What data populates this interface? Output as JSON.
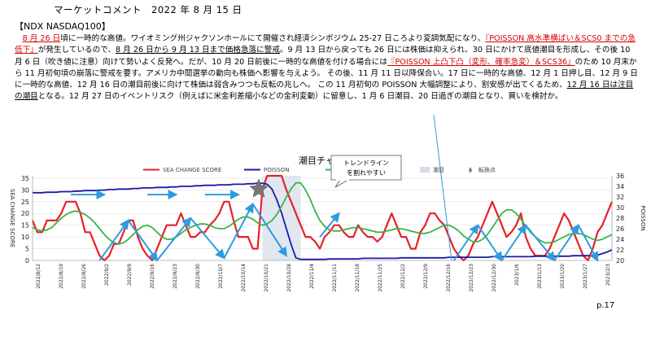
{
  "header": {
    "title": "マーケットコメント　2022 年 8 月 15 日",
    "ticker": "【NDX  NASDAQ100】"
  },
  "comment": {
    "segments": [
      {
        "text": "　",
        "red": false,
        "ul": false
      },
      {
        "text": "8 月 26 日",
        "red": true,
        "ul": true
      },
      {
        "text": "頃に一時的な高値。ワイオミング州ジャクソンホールにて開催され経済シンポジウム 25-27 日ころより変調気配になり、",
        "red": false,
        "ul": false
      },
      {
        "text": "『POISSON 高水準横ばい＆SCS0 までの急低下』",
        "red": true,
        "ul": true
      },
      {
        "text": "が発生しているので、",
        "red": false,
        "ul": false
      },
      {
        "text": "8 月 26 日から 9 月 13 日まで価格急落に警戒",
        "red": false,
        "ul": true
      },
      {
        "text": "。9 月 13 日から戻っても 26 日には株価は抑えられ、30 日にかけて底値潮目を形成し、その後 10 月 6 日（吹き値に注意）向けて勢いよく反発へ。だが、10 月 20 日前後に一時的な高値を付ける場合には",
        "red": false,
        "ul": false
      },
      {
        "text": "『POISSON 上凸下凸（変形、確率急変）＆SCS36』",
        "red": true,
        "ul": true
      },
      {
        "text": "のため 10 月末から 11 月初旬頃の崩落に警戒を要す。アメリカ中間選挙の動向も株価へ影響を与えよう。 その後、11 月 11 日以降保合い。17 日に一時的な高値、12 月 1 日押し目、12 月 9 日に一時的な高値、12 月 16 日の潮目前後に向けて株価は弱含みつつも反転の兆しへ。 この 11 月初旬の POISSON 大幅調整により、割安感が出てくるため、",
        "red": false,
        "ul": false
      },
      {
        "text": "12 月 16 日は注目の潮目",
        "red": false,
        "ul": true
      },
      {
        "text": "となる。12 月 27 日のイベントリスク（例えばに米金利差縮小などの金利変動）に留意し、1 月 6 日潮目、20 日過ぎの潮目となり、買いを検討か。",
        "red": false,
        "ul": false
      }
    ]
  },
  "chart_data": {
    "type": "line",
    "title": "潮目チャート",
    "ylabel_left": "SEA CHANGE SCORE",
    "ylabel_right": "POISSON",
    "ylim_left": [
      0,
      36
    ],
    "ylim_right": [
      20,
      36
    ],
    "yticks_left": [
      0,
      5,
      10,
      15,
      20,
      25,
      30,
      35
    ],
    "yticks_right": [
      20,
      22,
      24,
      26,
      28,
      30,
      32,
      34,
      36
    ],
    "x_tick_labels": [
      "2022/8/12",
      "2022/8/19",
      "2022/8/26",
      "2022/9/2",
      "2022/9/9",
      "2022/9/16",
      "2022/9/23",
      "2022/9/30",
      "2022/10/7",
      "2022/10/14",
      "2022/10/21",
      "2022/10/28",
      "2022/11/4",
      "2022/11/11",
      "2022/11/18",
      "2022/11/25",
      "2022/12/2",
      "2022/12/9",
      "2022/12/16",
      "2022/12/23",
      "2022/12/30",
      "2023/1/6",
      "2023/1/13",
      "2023/1/20",
      "2023/1/27",
      "2023/2/3"
    ],
    "legend": [
      {
        "name": "SEA CHANGE SCORE",
        "color": "#e8202a"
      },
      {
        "name": "POISSON",
        "color": "#1a1aa8"
      },
      {
        "name": "FTR 推定補正値",
        "color": "#3cb34a"
      },
      {
        "name": "潮目",
        "color": "#d4dde8"
      },
      {
        "name": "転換点",
        "color": "#777777"
      }
    ],
    "annotation": {
      "line1": "トレンドライン",
      "line2": "を割れやすい"
    },
    "series": [
      {
        "name": "SEA CHANGE SCORE",
        "color": "#e8202a",
        "values": [
          17,
          12,
          12,
          17,
          17,
          17,
          20,
          25,
          25,
          25,
          20,
          12,
          12,
          7,
          2,
          0,
          2,
          7,
          7,
          12,
          17,
          17,
          10,
          5,
          2,
          0,
          5,
          10,
          15,
          15,
          15,
          20,
          15,
          10,
          10,
          12,
          12,
          15,
          17,
          20,
          25,
          25,
          17,
          10,
          10,
          10,
          5,
          5,
          30,
          36,
          36,
          36,
          36,
          30,
          25,
          20,
          15,
          10,
          10,
          8,
          5,
          10,
          12,
          15,
          15,
          12,
          10,
          10,
          15,
          12,
          10,
          10,
          8,
          10,
          15,
          20,
          15,
          10,
          10,
          5,
          5,
          12,
          15,
          20,
          20,
          17,
          15,
          10,
          5,
          2,
          0,
          2,
          7,
          10,
          15,
          20,
          25,
          20,
          15,
          10,
          12,
          15,
          20,
          10,
          5,
          2,
          2,
          2,
          5,
          10,
          15,
          20,
          17,
          12,
          7,
          2,
          0,
          5,
          12,
          15,
          20,
          25
        ]
      },
      {
        "name": "POISSON",
        "color": "#1a1aa8",
        "values": [
          32.8,
          32.8,
          32.8,
          32.9,
          32.9,
          32.9,
          33.0,
          33.0,
          33.0,
          33.1,
          33.1,
          33.2,
          33.2,
          33.2,
          33.3,
          33.3,
          33.4,
          33.4,
          33.5,
          33.5,
          33.5,
          33.6,
          33.6,
          33.7,
          33.7,
          33.7,
          33.8,
          33.8,
          33.8,
          33.9,
          33.9,
          34.0,
          34.0,
          34.0,
          34.1,
          34.1,
          34.2,
          34.2,
          34.2,
          34.3,
          34.3,
          34.3,
          34.4,
          34.4,
          34.4,
          34.5,
          34.5,
          34.6,
          34.6,
          34.4,
          33.5,
          31.5,
          29,
          26,
          23,
          20.5,
          20.2,
          20.2,
          20.2,
          20.2,
          20.2,
          20.2,
          20.3,
          20.3,
          20.3,
          20.3,
          20.3,
          20.3,
          20.3,
          20.4,
          20.4,
          20.4,
          20.4,
          20.4,
          20.4,
          20.4,
          20.4,
          20.5,
          20.5,
          20.5,
          20.5,
          20.5,
          20.5,
          20.5,
          20.5,
          20.5,
          20.5,
          20.6,
          20.6,
          20.6,
          20.6,
          20.6,
          20.6,
          20.6,
          20.6,
          20.6,
          20.7,
          20.7,
          20.7,
          20.7,
          20.7,
          20.7,
          20.7,
          20.7,
          20.7,
          20.8,
          20.8,
          20.8,
          20.8,
          20.8,
          20.8,
          20.8,
          20.8,
          20.9,
          20.9,
          20.9,
          20.9,
          20.9,
          21,
          21.3,
          21.6,
          22
        ]
      },
      {
        "name": "FTR 推定補正値",
        "color": "#3cb34a",
        "values": [
          14,
          13,
          12.5,
          13,
          14,
          16,
          18,
          19.5,
          20.5,
          21,
          20.5,
          19.5,
          18,
          16,
          13.5,
          11,
          9,
          7.5,
          7,
          7.5,
          9,
          11,
          13,
          14.5,
          15,
          14,
          12,
          10,
          9,
          9,
          10,
          11.5,
          13,
          14,
          15,
          15.5,
          15.5,
          15,
          14,
          13.5,
          13.5,
          14.5,
          16,
          17.5,
          18.5,
          18.5,
          17.5,
          16,
          15,
          15.5,
          17,
          19.5,
          23,
          27,
          30.5,
          33,
          33,
          30,
          26,
          21,
          17,
          14.5,
          13,
          12.5,
          12.5,
          13,
          13.5,
          14,
          14,
          13.5,
          13,
          12.5,
          12,
          12,
          12.5,
          13,
          13.5,
          13.5,
          13,
          12.5,
          12,
          11.5,
          11.5,
          12,
          13,
          14,
          15,
          15,
          14,
          12.5,
          10.5,
          9,
          8,
          8,
          9,
          11,
          14,
          17,
          20,
          21.5,
          21.5,
          20,
          17.5,
          14.5,
          12,
          10,
          8.5,
          7.5,
          7.5,
          8,
          9,
          10,
          11,
          11.5,
          11.5,
          11,
          10,
          9,
          8.5,
          9,
          10,
          11
        ]
      }
    ]
  },
  "page": {
    "number": "p.17"
  }
}
